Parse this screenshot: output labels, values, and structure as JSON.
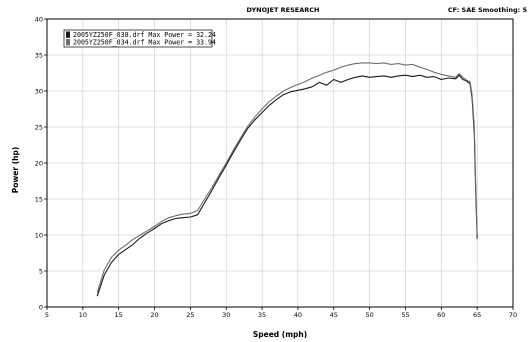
{
  "header": {
    "center": "DYNOJET RESEARCH",
    "right": "CF: SAE  Smoothing: 5"
  },
  "chart_data": {
    "type": "line",
    "xlabel": "Speed (mph)",
    "ylabel": "Power (hp)",
    "xlim": [
      5,
      70
    ],
    "ylim": [
      0,
      40
    ],
    "x_ticks": [
      5,
      10,
      15,
      20,
      25,
      30,
      35,
      40,
      45,
      50,
      55,
      60,
      65,
      70
    ],
    "y_ticks": [
      0,
      5,
      10,
      15,
      20,
      25,
      30,
      35,
      40
    ],
    "grid": true,
    "legend_position": "top-left",
    "series": [
      {
        "name": "2005YZ250F_038.drf Max Power = 32.24",
        "color": "#1a1a1a",
        "points": [
          [
            12.0,
            1.5
          ],
          [
            12.5,
            3.0
          ],
          [
            13.0,
            4.5
          ],
          [
            14.0,
            6.2
          ],
          [
            15.0,
            7.3
          ],
          [
            16.0,
            8.0
          ],
          [
            17.0,
            8.7
          ],
          [
            18.0,
            9.6
          ],
          [
            19.0,
            10.3
          ],
          [
            20.0,
            10.9
          ],
          [
            21.0,
            11.6
          ],
          [
            22.0,
            12.0
          ],
          [
            23.0,
            12.3
          ],
          [
            24.0,
            12.4
          ],
          [
            25.0,
            12.5
          ],
          [
            26.0,
            12.8
          ],
          [
            27.0,
            14.5
          ],
          [
            28.0,
            16.2
          ],
          [
            29.0,
            18.0
          ],
          [
            30.0,
            19.7
          ],
          [
            31.0,
            21.5
          ],
          [
            32.0,
            23.2
          ],
          [
            33.0,
            24.8
          ],
          [
            34.0,
            26.0
          ],
          [
            35.0,
            27.0
          ],
          [
            36.0,
            28.0
          ],
          [
            37.0,
            28.8
          ],
          [
            38.0,
            29.5
          ],
          [
            39.0,
            29.9
          ],
          [
            40.0,
            30.1
          ],
          [
            41.0,
            30.3
          ],
          [
            42.0,
            30.6
          ],
          [
            43.0,
            31.2
          ],
          [
            44.0,
            30.8
          ],
          [
            45.0,
            31.6
          ],
          [
            46.0,
            31.2
          ],
          [
            47.0,
            31.6
          ],
          [
            48.0,
            31.9
          ],
          [
            49.0,
            32.1
          ],
          [
            50.0,
            31.9
          ],
          [
            51.0,
            32.0
          ],
          [
            52.0,
            32.1
          ],
          [
            53.0,
            31.9
          ],
          [
            54.0,
            32.1
          ],
          [
            55.0,
            32.2
          ],
          [
            56.0,
            32.0
          ],
          [
            57.0,
            32.2
          ],
          [
            58.0,
            31.9
          ],
          [
            59.0,
            32.0
          ],
          [
            60.0,
            31.6
          ],
          [
            61.0,
            31.8
          ],
          [
            62.0,
            31.7
          ],
          [
            62.5,
            32.2
          ],
          [
            63.0,
            31.6
          ],
          [
            63.5,
            31.4
          ],
          [
            64.0,
            31.0
          ],
          [
            64.3,
            29.0
          ],
          [
            64.6,
            24.0
          ],
          [
            64.8,
            16.0
          ],
          [
            65.0,
            9.5
          ]
        ]
      },
      {
        "name": "2005YZ250F_034.drf Max Power = 33.94",
        "color": "#6e6e6e",
        "points": [
          [
            12.0,
            2.0
          ],
          [
            12.5,
            3.6
          ],
          [
            13.0,
            5.2
          ],
          [
            14.0,
            6.9
          ],
          [
            15.0,
            7.9
          ],
          [
            16.0,
            8.6
          ],
          [
            17.0,
            9.4
          ],
          [
            18.0,
            10.0
          ],
          [
            19.0,
            10.6
          ],
          [
            20.0,
            11.2
          ],
          [
            21.0,
            11.9
          ],
          [
            22.0,
            12.4
          ],
          [
            23.0,
            12.7
          ],
          [
            24.0,
            12.9
          ],
          [
            25.0,
            13.0
          ],
          [
            26.0,
            13.4
          ],
          [
            27.0,
            15.0
          ],
          [
            28.0,
            16.6
          ],
          [
            29.0,
            18.3
          ],
          [
            30.0,
            20.0
          ],
          [
            31.0,
            21.8
          ],
          [
            32.0,
            23.5
          ],
          [
            33.0,
            25.1
          ],
          [
            34.0,
            26.4
          ],
          [
            35.0,
            27.5
          ],
          [
            36.0,
            28.5
          ],
          [
            37.0,
            29.3
          ],
          [
            38.0,
            30.0
          ],
          [
            39.0,
            30.5
          ],
          [
            40.0,
            30.9
          ],
          [
            41.0,
            31.3
          ],
          [
            42.0,
            31.8
          ],
          [
            43.0,
            32.2
          ],
          [
            44.0,
            32.6
          ],
          [
            45.0,
            32.9
          ],
          [
            46.0,
            33.3
          ],
          [
            47.0,
            33.6
          ],
          [
            48.0,
            33.8
          ],
          [
            49.0,
            33.9
          ],
          [
            50.0,
            33.9
          ],
          [
            51.0,
            33.8
          ],
          [
            52.0,
            33.9
          ],
          [
            53.0,
            33.7
          ],
          [
            54.0,
            33.8
          ],
          [
            55.0,
            33.6
          ],
          [
            56.0,
            33.7
          ],
          [
            57.0,
            33.3
          ],
          [
            58.0,
            33.0
          ],
          [
            59.0,
            32.6
          ],
          [
            60.0,
            32.3
          ],
          [
            61.0,
            32.1
          ],
          [
            62.0,
            31.9
          ],
          [
            62.5,
            32.4
          ],
          [
            63.0,
            31.9
          ],
          [
            63.5,
            31.5
          ],
          [
            64.0,
            31.3
          ],
          [
            64.3,
            29.5
          ],
          [
            64.6,
            25.0
          ],
          [
            64.8,
            17.0
          ],
          [
            65.0,
            10.0
          ]
        ]
      }
    ]
  }
}
